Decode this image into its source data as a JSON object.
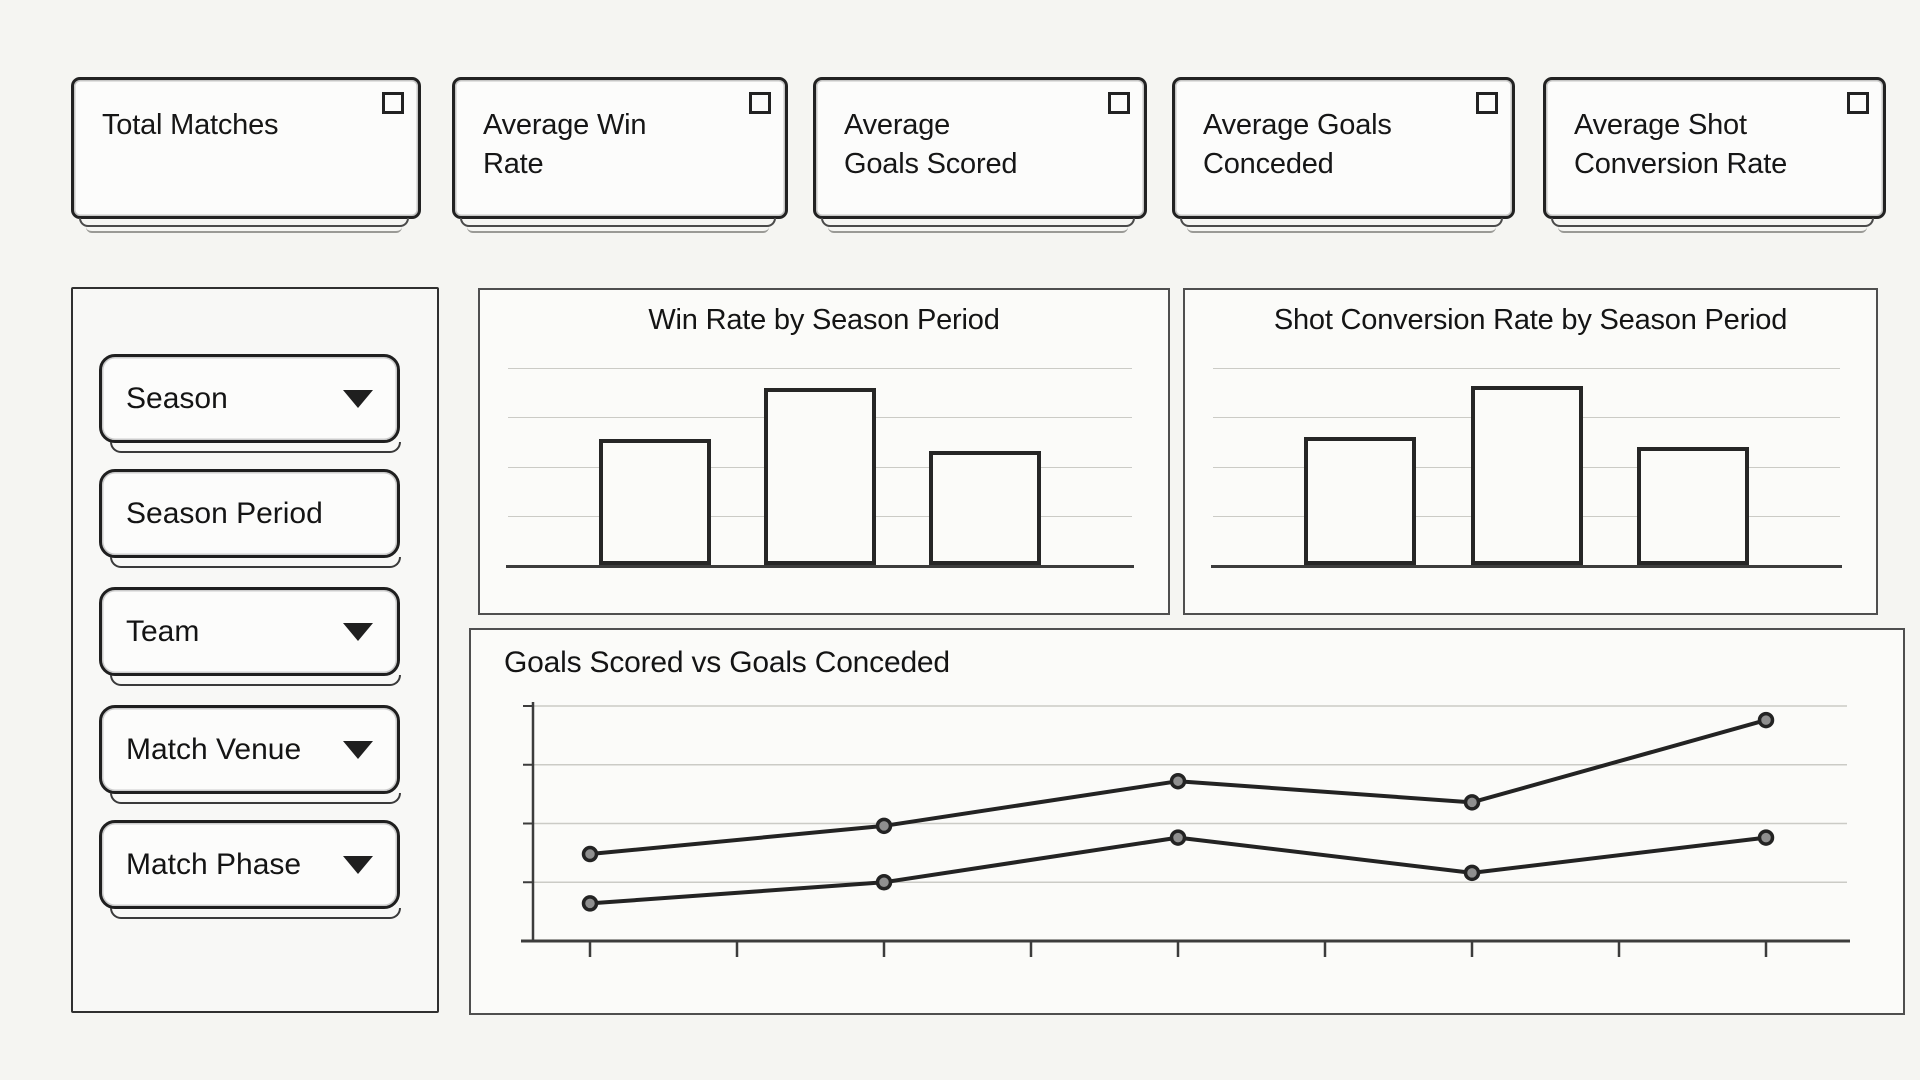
{
  "kpi_cards": [
    {
      "label": "Total Matches",
      "icon": "square-icon"
    },
    {
      "label": "Average Win\nRate",
      "icon": "square-icon"
    },
    {
      "label": "Average\nGoals Scored",
      "icon": "square-icon"
    },
    {
      "label": "Average Goals\nConceded",
      "icon": "square-icon"
    },
    {
      "label": "Average Shot\nConversion Rate",
      "icon": "square-icon"
    }
  ],
  "sidebar": {
    "filters": [
      {
        "label": "Season",
        "has_dropdown_arrow": true
      },
      {
        "label": "Season Period",
        "has_dropdown_arrow": false
      },
      {
        "label": "Team",
        "has_dropdown_arrow": true
      },
      {
        "label": "Match Venue",
        "has_dropdown_arrow": true
      },
      {
        "label": "Match Phase",
        "has_dropdown_arrow": true
      }
    ]
  },
  "colors": {
    "background": "#f5f5f2",
    "panel_background": "#fbfbf9",
    "ink": "#232323",
    "axis": "#3c3c3c",
    "gridline": "#cbcbc6",
    "marker_fill": "#8f8f8f"
  },
  "chart_data": [
    {
      "type": "bar",
      "title": "Win Rate by Season Period",
      "categories": [
        "",
        "",
        ""
      ],
      "values": [
        0.64,
        0.9,
        0.58
      ],
      "xlabel": "",
      "ylabel": "",
      "ylim": [
        0,
        1
      ],
      "grid": true,
      "axis_tick_labels": false,
      "notes": "three unlabeled white bars with dark outlines; 4 light horizontal gridlines; values normalized to top gridline = 1.0"
    },
    {
      "type": "bar",
      "title": "Shot Conversion Rate by Season Period",
      "categories": [
        "",
        "",
        ""
      ],
      "values": [
        0.65,
        0.91,
        0.6
      ],
      "xlabel": "",
      "ylabel": "",
      "ylim": [
        0,
        1
      ],
      "grid": true,
      "axis_tick_labels": false,
      "notes": "three unlabeled white bars with dark outlines; 4 light horizontal gridlines; values normalized to top gridline = 1.0"
    },
    {
      "type": "line",
      "title": "Goals Scored vs Goals Conceded",
      "x": [
        1,
        3,
        5,
        7,
        9
      ],
      "x_tick_count": 9,
      "series": [
        {
          "name": "Goals Scored",
          "values": [
            0.37,
            0.49,
            0.68,
            0.59,
            0.94
          ]
        },
        {
          "name": "Goals Conceded",
          "values": [
            0.16,
            0.25,
            0.44,
            0.29,
            0.44
          ]
        }
      ],
      "ylim": [
        0,
        1
      ],
      "grid": true,
      "markers": true,
      "legend_position": "none",
      "notes": "two dark polylines with gray circular markers on ticks 1,3,5,7,9 of 9 unlabeled x ticks; 4 light horizontal gridlines; values normalized to top gridline = 1.0"
    }
  ]
}
